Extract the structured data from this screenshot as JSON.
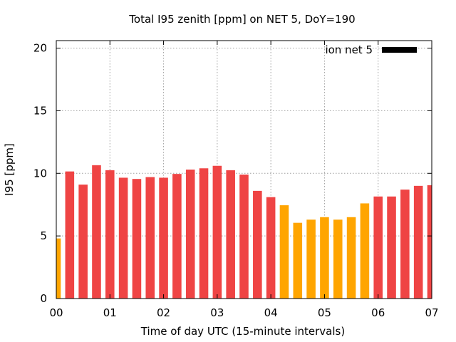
{
  "chart_data": {
    "type": "bar",
    "title": "Total I95 zenith [ppm] on NET 5, DoY=190",
    "xlabel": "Time of day UTC (15-minute intervals)",
    "ylabel": "I95 [ppm]",
    "ylim": [
      0,
      20.6
    ],
    "xlim": [
      0,
      7
    ],
    "yticks": [
      0,
      5,
      10,
      15,
      20
    ],
    "xticks": [
      {
        "value": 0,
        "label": "00"
      },
      {
        "value": 1,
        "label": "01"
      },
      {
        "value": 2,
        "label": "02"
      },
      {
        "value": 3,
        "label": "03"
      },
      {
        "value": 4,
        "label": "04"
      },
      {
        "value": 5,
        "label": "05"
      },
      {
        "value": 6,
        "label": "06"
      },
      {
        "value": 7,
        "label": "07"
      }
    ],
    "grid": true,
    "legend": {
      "position": "top-right",
      "entries": [
        {
          "name": "ion net 5",
          "color": "#000000"
        }
      ]
    },
    "colors": {
      "red": "#ef4444",
      "orange": "#ffa500"
    },
    "bar_width_hours": 0.167,
    "bars": [
      {
        "x": 0.0,
        "value": 4.8,
        "color": "orange"
      },
      {
        "x": 0.25,
        "value": 10.15,
        "color": "red"
      },
      {
        "x": 0.5,
        "value": 9.1,
        "color": "red"
      },
      {
        "x": 0.75,
        "value": 10.65,
        "color": "red"
      },
      {
        "x": 1.0,
        "value": 10.25,
        "color": "red"
      },
      {
        "x": 1.25,
        "value": 9.65,
        "color": "red"
      },
      {
        "x": 1.5,
        "value": 9.55,
        "color": "red"
      },
      {
        "x": 1.75,
        "value": 9.7,
        "color": "red"
      },
      {
        "x": 2.0,
        "value": 9.65,
        "color": "red"
      },
      {
        "x": 2.25,
        "value": 9.95,
        "color": "red"
      },
      {
        "x": 2.5,
        "value": 10.3,
        "color": "red"
      },
      {
        "x": 2.75,
        "value": 10.4,
        "color": "red"
      },
      {
        "x": 3.0,
        "value": 10.6,
        "color": "red"
      },
      {
        "x": 3.25,
        "value": 10.25,
        "color": "red"
      },
      {
        "x": 3.5,
        "value": 9.9,
        "color": "red"
      },
      {
        "x": 3.75,
        "value": 8.6,
        "color": "red"
      },
      {
        "x": 4.0,
        "value": 8.1,
        "color": "red"
      },
      {
        "x": 4.25,
        "value": 7.45,
        "color": "orange"
      },
      {
        "x": 4.5,
        "value": 6.05,
        "color": "orange"
      },
      {
        "x": 4.75,
        "value": 6.3,
        "color": "orange"
      },
      {
        "x": 5.0,
        "value": 6.5,
        "color": "orange"
      },
      {
        "x": 5.25,
        "value": 6.3,
        "color": "orange"
      },
      {
        "x": 5.5,
        "value": 6.5,
        "color": "orange"
      },
      {
        "x": 5.75,
        "value": 7.6,
        "color": "orange"
      },
      {
        "x": 6.0,
        "value": 8.15,
        "color": "red"
      },
      {
        "x": 6.25,
        "value": 8.15,
        "color": "red"
      },
      {
        "x": 6.5,
        "value": 8.7,
        "color": "red"
      },
      {
        "x": 6.75,
        "value": 9.0,
        "color": "red"
      },
      {
        "x": 7.0,
        "value": 9.05,
        "color": "red"
      }
    ]
  }
}
